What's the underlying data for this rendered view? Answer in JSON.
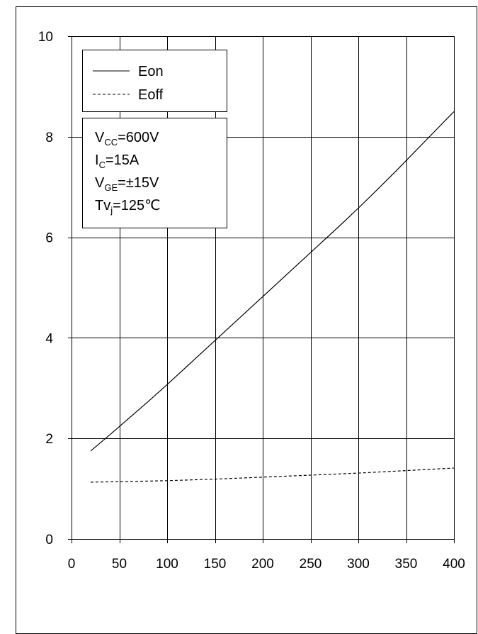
{
  "chart_data": {
    "type": "line",
    "xlim": [
      0,
      400
    ],
    "ylim": [
      0,
      10
    ],
    "x_ticks": [
      0,
      50,
      100,
      150,
      200,
      250,
      300,
      350,
      400
    ],
    "y_ticks": [
      0,
      2,
      4,
      6,
      8,
      10
    ],
    "grid": true,
    "legend_position": "top-left",
    "series": [
      {
        "name": "Eon",
        "line_style": "solid",
        "x": [
          20,
          40,
          60,
          80,
          100,
          120,
          140,
          160,
          180,
          200,
          220,
          240,
          260,
          280,
          300,
          320,
          340,
          360,
          380,
          400
        ],
        "y": [
          1.75,
          2.07,
          2.4,
          2.73,
          3.07,
          3.42,
          3.77,
          4.12,
          4.47,
          4.82,
          5.17,
          5.52,
          5.87,
          6.22,
          6.58,
          6.95,
          7.33,
          7.72,
          8.11,
          8.5
        ]
      },
      {
        "name": "Eoff",
        "line_style": "dashed",
        "x": [
          20,
          50,
          100,
          150,
          200,
          250,
          300,
          350,
          400
        ],
        "y": [
          1.13,
          1.14,
          1.16,
          1.19,
          1.23,
          1.27,
          1.31,
          1.36,
          1.41
        ]
      }
    ],
    "conditions": [
      {
        "main": "V",
        "sub": "CC",
        "rest": "=600V"
      },
      {
        "main": "I",
        "sub": "C",
        "rest": "=15A"
      },
      {
        "main": "V",
        "sub": "GE",
        "rest": "=±15V"
      },
      {
        "main": "Tv",
        "sub": "j",
        "rest": "=125℃"
      }
    ]
  }
}
